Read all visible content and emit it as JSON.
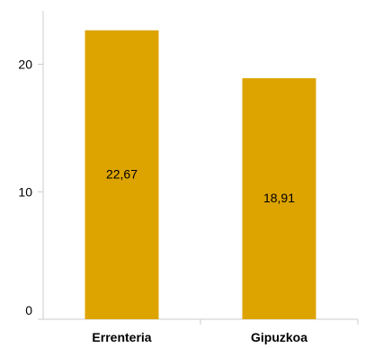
{
  "chart_data": {
    "type": "bar",
    "categories": [
      "Errenteria",
      "Gipuzkoa"
    ],
    "values": [
      22.67,
      18.91
    ],
    "value_labels": [
      "22,67",
      "18,91"
    ],
    "yticks": [
      0,
      10,
      20
    ],
    "ylim": [
      0,
      24.2
    ],
    "grid": false,
    "legend": "none",
    "colors": {
      "bar": "#DDA400",
      "axis": "#cccccc",
      "text": "#000000"
    }
  }
}
